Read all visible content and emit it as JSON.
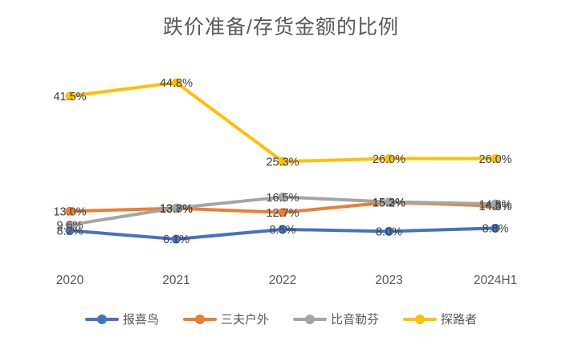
{
  "title": "跌价准备/存货金额的比例",
  "chart_data": {
    "type": "line",
    "categories": [
      "2020",
      "2021",
      "2022",
      "2023",
      "2024H1"
    ],
    "series": [
      {
        "name": "报喜鸟",
        "color": "#4472C4",
        "values": [
          8.2,
          6.1,
          8.5,
          8.0,
          8.8
        ]
      },
      {
        "name": "三夫户外",
        "color": "#ED7D31",
        "values": [
          13.0,
          13.7,
          12.7,
          15.2,
          14.3
        ]
      },
      {
        "name": "比音勒芬",
        "color": "#A5A5A5",
        "values": [
          9.6,
          13.8,
          16.5,
          15.3,
          14.8
        ]
      },
      {
        "name": "探路者",
        "color": "#FFC000",
        "values": [
          41.5,
          44.8,
          25.3,
          26.0,
          26.0
        ]
      }
    ],
    "ylim": [
      0,
      50
    ],
    "grid": false,
    "y_axis_visible": false,
    "legend_position": "bottom",
    "data_labels": "center",
    "label_format": "0.0%",
    "label_color": "#404040",
    "axis_label_color": "#595959"
  }
}
